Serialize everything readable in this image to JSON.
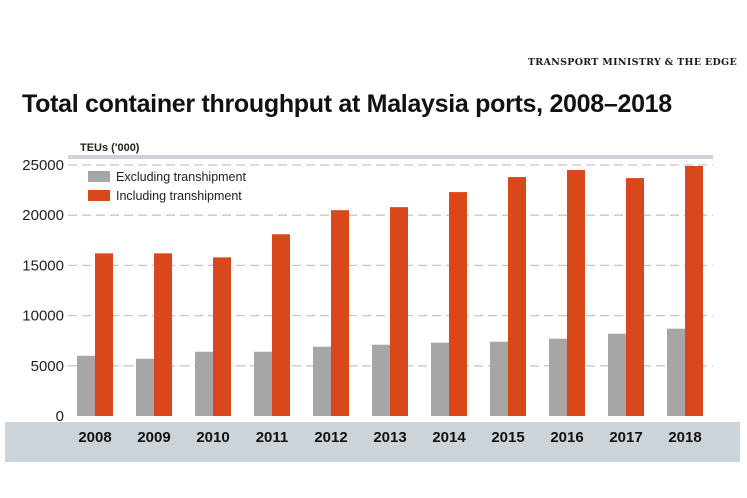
{
  "source": "TRANSPORT MINISTRY & THE EDGE",
  "chart_data": {
    "type": "bar",
    "title": "Total container throughput at Malaysia ports, 2008–2018",
    "ylabel": "TEUs ('000)",
    "xlabel": "",
    "categories": [
      "2008",
      "2009",
      "2010",
      "2011",
      "2012",
      "2013",
      "2014",
      "2015",
      "2016",
      "2017",
      "2018"
    ],
    "series": [
      {
        "name": "Excluding transhipment",
        "color": "#a6a6a6",
        "values": [
          6000,
          5700,
          6400,
          6400,
          6900,
          7100,
          7300,
          7400,
          7700,
          8200,
          8700
        ]
      },
      {
        "name": "Including transhipment",
        "color": "#d9481a",
        "values": [
          16200,
          16200,
          15800,
          18100,
          20500,
          20800,
          22300,
          23800,
          24500,
          23700,
          24900
        ]
      }
    ],
    "ylim": [
      0,
      25000
    ],
    "yticks": [
      0,
      5000,
      10000,
      15000,
      20000,
      25000
    ],
    "grid": true,
    "legend_position": "top-left"
  }
}
